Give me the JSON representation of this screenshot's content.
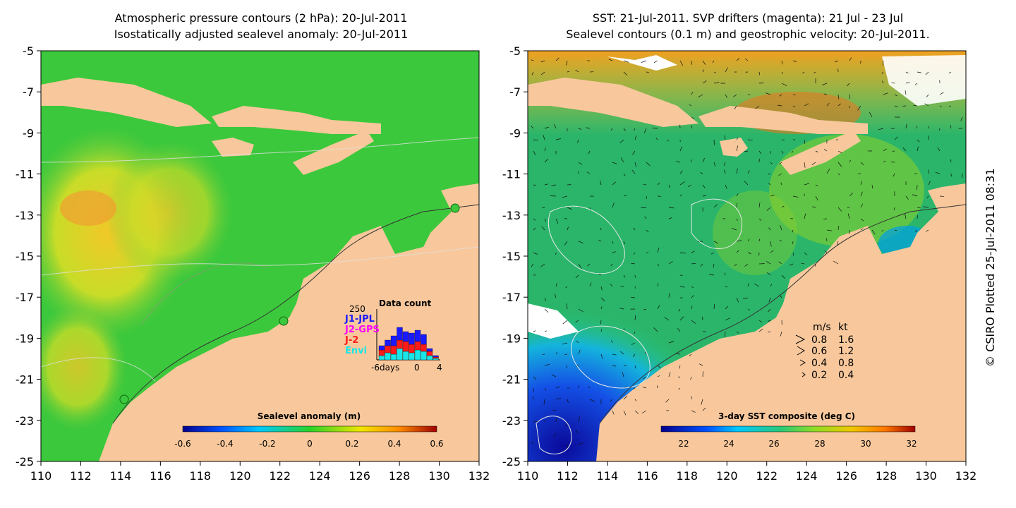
{
  "left_panel": {
    "title_line1": "Atmospheric pressure contours (2 hPa): 20-Jul-2011",
    "title_line2": "Isostatically adjusted sealevel anomaly: 20-Jul-2011",
    "colorbar_label": "Sealevel anomaly (m)",
    "colorbar_ticks": [
      "-0.6",
      "-0.4",
      "-0.2",
      "0",
      "0.2",
      "0.4",
      "0.6"
    ],
    "data_count": {
      "title": "Data count",
      "max_label": "250",
      "legend": [
        {
          "name": "J1-JPL",
          "color": "#1a1aff"
        },
        {
          "name": "J2-GPS",
          "color": "#ff00ff"
        },
        {
          "name": "J-2",
          "color": "#ff1a1a"
        },
        {
          "name": "Envi",
          "color": "#19e6e6"
        }
      ],
      "x_labels": [
        "-6days",
        "0",
        "4"
      ]
    }
  },
  "right_panel": {
    "title_line1": "SST: 21-Jul-2011. SVP drifters (magenta): 21 Jul - 23 Jul",
    "title_line2": "Sealevel contours (0.1 m) and geostrophic velocity: 20-Jul-2011.",
    "colorbar_label": "3-day SST composite (deg C)",
    "colorbar_ticks": [
      "22",
      "24",
      "26",
      "28",
      "30",
      "32"
    ],
    "speed_legend": {
      "header_ms": "m/s",
      "header_kt": "kt",
      "rows": [
        {
          "ms": "0.8",
          "kt": "1.6"
        },
        {
          "ms": "0.6",
          "kt": "1.2"
        },
        {
          "ms": "0.4",
          "kt": "0.8"
        },
        {
          "ms": "0.2",
          "kt": "0.4"
        }
      ]
    }
  },
  "axes": {
    "x_ticks": [
      "110",
      "112",
      "114",
      "116",
      "118",
      "120",
      "122",
      "124",
      "126",
      "128",
      "130",
      "132"
    ],
    "y_ticks": [
      "-5",
      "-7",
      "-9",
      "-11",
      "-13",
      "-15",
      "-17",
      "-19",
      "-21",
      "-23",
      "-25"
    ]
  },
  "credit": "© CSIRO Plotted 25-Jul-2011 08:31",
  "colors": {
    "land": "#f8c89c",
    "sea_anomaly_base": "#3cc83c",
    "sst_base": "#2ab56a"
  }
}
